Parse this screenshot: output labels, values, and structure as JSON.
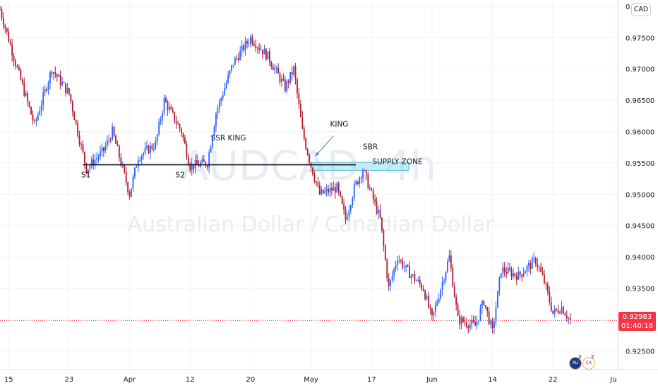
{
  "chart_data": {
    "type": "candlestick",
    "title": "AUDCAD, 4h",
    "subtitle": "Australian Dollar / Canadian Dollar",
    "currency": "CAD",
    "ylim": [
      0.922,
      0.981
    ],
    "yticks": [
      "0.92500",
      "0.93000",
      "0.93500",
      "0.94000",
      "0.94500",
      "0.95000",
      "0.95500",
      "0.96000",
      "0.96500",
      "0.97000",
      "0.97500",
      "0."
    ],
    "ytick_values": [
      0.925,
      0.93,
      0.935,
      0.94,
      0.945,
      0.95,
      0.955,
      0.96,
      0.965,
      0.97,
      0.975,
      0.98
    ],
    "xticks": [
      "15",
      "23",
      "Apr",
      "12",
      "20",
      "May",
      "17",
      "Jun",
      "14",
      "22",
      "Ju"
    ],
    "xtick_positions": [
      -7,
      0,
      7,
      14,
      21,
      28,
      35,
      42,
      49,
      56,
      63
    ],
    "x_range": [
      -8,
      63.5
    ],
    "last_price": "0.92983",
    "last_price_value": 0.92983,
    "countdown": "01:40:18",
    "up_color": "#2962ff",
    "down_color": "#b2182b",
    "zone_color": "#7fd4e6",
    "anchors": [
      [
        -8,
        0.9795
      ],
      [
        -6,
        0.97
      ],
      [
        -4,
        0.961
      ],
      [
        -2,
        0.97
      ],
      [
        0,
        0.966
      ],
      [
        2,
        0.954
      ],
      [
        4,
        0.957
      ],
      [
        5,
        0.96
      ],
      [
        7,
        0.95
      ],
      [
        8,
        0.956
      ],
      [
        10,
        0.958
      ],
      [
        11,
        0.965
      ],
      [
        13,
        0.96
      ],
      [
        14,
        0.9545
      ],
      [
        16,
        0.955
      ],
      [
        17,
        0.963
      ],
      [
        19,
        0.971
      ],
      [
        21,
        0.975
      ],
      [
        23,
        0.972
      ],
      [
        25,
        0.967
      ],
      [
        26,
        0.97
      ],
      [
        27,
        0.96
      ],
      [
        28,
        0.9545
      ],
      [
        29,
        0.95
      ],
      [
        31,
        0.951
      ],
      [
        32,
        0.946
      ],
      [
        33,
        0.951
      ],
      [
        34,
        0.954
      ],
      [
        36,
        0.946
      ],
      [
        37,
        0.935
      ],
      [
        38,
        0.94
      ],
      [
        39,
        0.938
      ],
      [
        41,
        0.935
      ],
      [
        42,
        0.93
      ],
      [
        44,
        0.94
      ],
      [
        45,
        0.93
      ],
      [
        47,
        0.929
      ],
      [
        48,
        0.933
      ],
      [
        49,
        0.928
      ],
      [
        50,
        0.938
      ],
      [
        52,
        0.937
      ],
      [
        54,
        0.9395
      ],
      [
        55,
        0.936
      ],
      [
        56,
        0.931
      ],
      [
        57,
        0.932
      ],
      [
        58,
        0.9298
      ]
    ],
    "lines": [
      {
        "label": "SSR KING",
        "x1": 1.6,
        "x2": 33.2,
        "y": 0.9547,
        "label_x": 16.4,
        "label_y": 0.9586
      }
    ],
    "annotations": [
      {
        "text": "S1",
        "x": 1.4,
        "y": 0.9527
      },
      {
        "text": "S2",
        "x": 12.3,
        "y": 0.9527
      },
      {
        "text": "KING",
        "x": 30.2,
        "y": 0.9608
      },
      {
        "text": "SBR",
        "x": 34.0,
        "y": 0.9572
      },
      {
        "text": "SUPPLY ZONE",
        "x": 35.1,
        "y": 0.9548
      }
    ],
    "supply_zone": {
      "label": "SUPPLY ZONE",
      "x1": 28.2,
      "x2": 39.3,
      "y_low": 0.9538,
      "y_high": 0.9551
    },
    "arrow": {
      "label": "KING",
      "from_x": 30.6,
      "from_y": 0.9593,
      "to_x": 28.5,
      "to_y": 0.9561
    }
  }
}
